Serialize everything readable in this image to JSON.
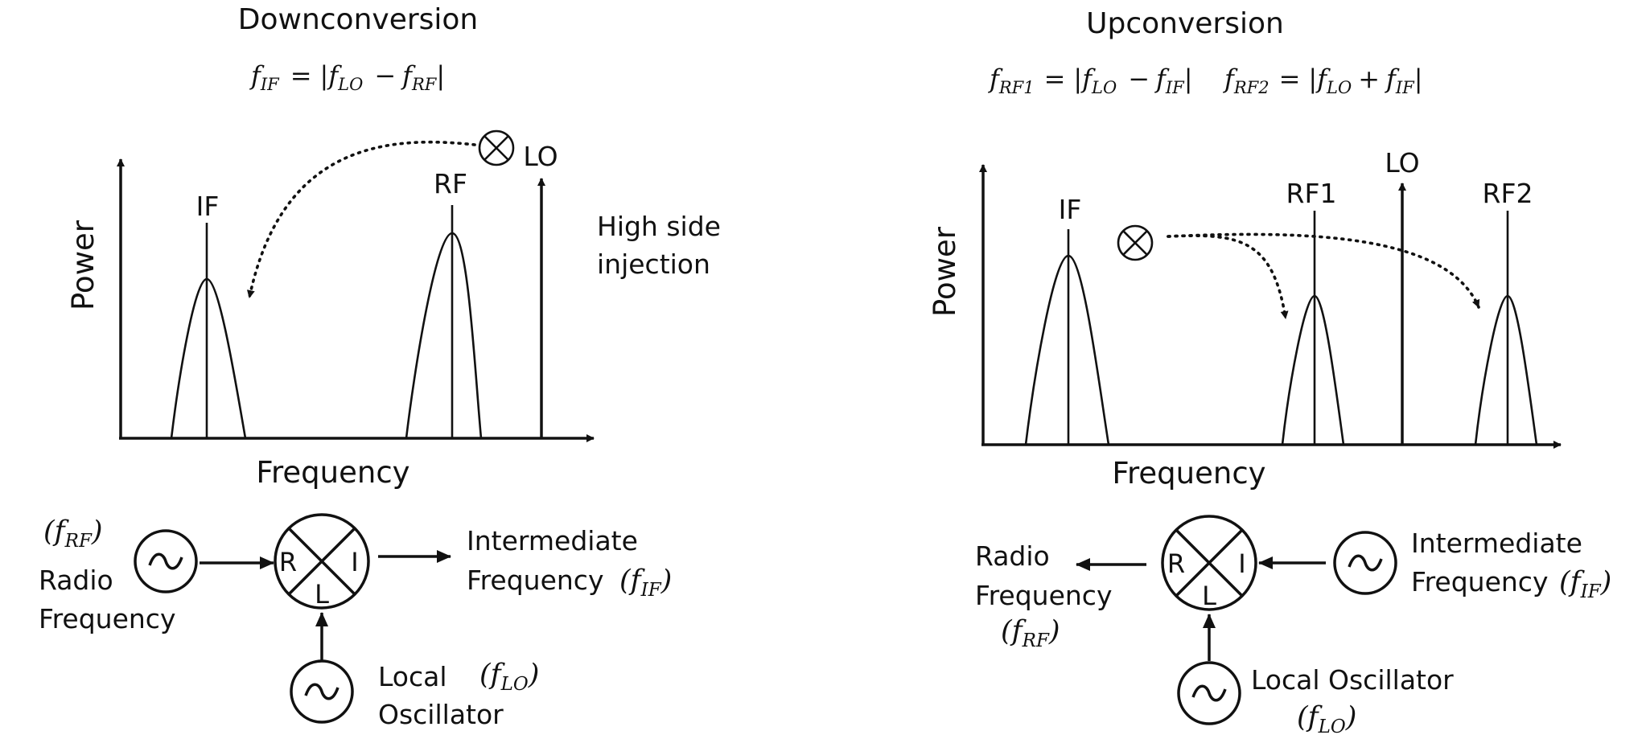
{
  "down": {
    "title": "Downconversion",
    "equation": {
      "lhs": "f",
      "lhs_sub": "IF",
      "op": "=",
      "bar_open": "|",
      "a": "f",
      "a_sub": "LO",
      "minus": "−",
      "b": "f",
      "b_sub": "RF",
      "bar_close": "|"
    },
    "axis_power": "Power",
    "axis_frequency": "Frequency",
    "peak_if": "IF",
    "peak_rf": "RF",
    "lo_label": "LO",
    "note_line1": "High side",
    "note_line2": "injection",
    "rf_source": {
      "sym": "f",
      "sub": "RF",
      "line1": "Radio",
      "line2": "Frequency"
    },
    "mixer": {
      "r": "R",
      "i": "I",
      "l": "L"
    },
    "output": {
      "line1": "Intermediate",
      "line2": "Frequency",
      "sym": "f",
      "sub": "IF"
    },
    "lo_source": {
      "line1": "Local",
      "line2": "Oscillator",
      "sym": "f",
      "sub": "LO"
    }
  },
  "up": {
    "title": "Upconversion",
    "equation1": {
      "lhs": "f",
      "lhs_sub": "RF1",
      "op": "=",
      "bar_open": "|",
      "a": "f",
      "a_sub": "LO",
      "minus": "−",
      "b": "f",
      "b_sub": "IF",
      "bar_close": "|"
    },
    "equation2": {
      "lhs": "f",
      "lhs_sub": "RF2",
      "op": "=",
      "bar_open": "|",
      "a": "f",
      "a_sub": "LO",
      "plus": "+",
      "b": "f",
      "b_sub": "IF",
      "bar_close": "|"
    },
    "axis_power": "Power",
    "axis_frequency": "Frequency",
    "peak_if": "IF",
    "peak_rf1": "RF1",
    "lo_label": "LO",
    "peak_rf2": "RF2",
    "output": {
      "line1": "Radio",
      "line2": "Frequency",
      "sym": "f",
      "sub": "RF"
    },
    "mixer": {
      "r": "R",
      "i": "I",
      "l": "L"
    },
    "if_source": {
      "line1": "Intermediate",
      "line2": "Frequency",
      "sym": "f",
      "sub": "IF"
    },
    "lo_source": {
      "line1": "Local Oscillator",
      "sym": "f",
      "sub": "LO"
    }
  },
  "colors": {
    "ink": "#111111",
    "background": "#ffffff"
  },
  "icons": {
    "mixer_symbol": "circle-times-icon",
    "oscillator": "sine-source-icon",
    "arrow": "arrow-icon"
  }
}
